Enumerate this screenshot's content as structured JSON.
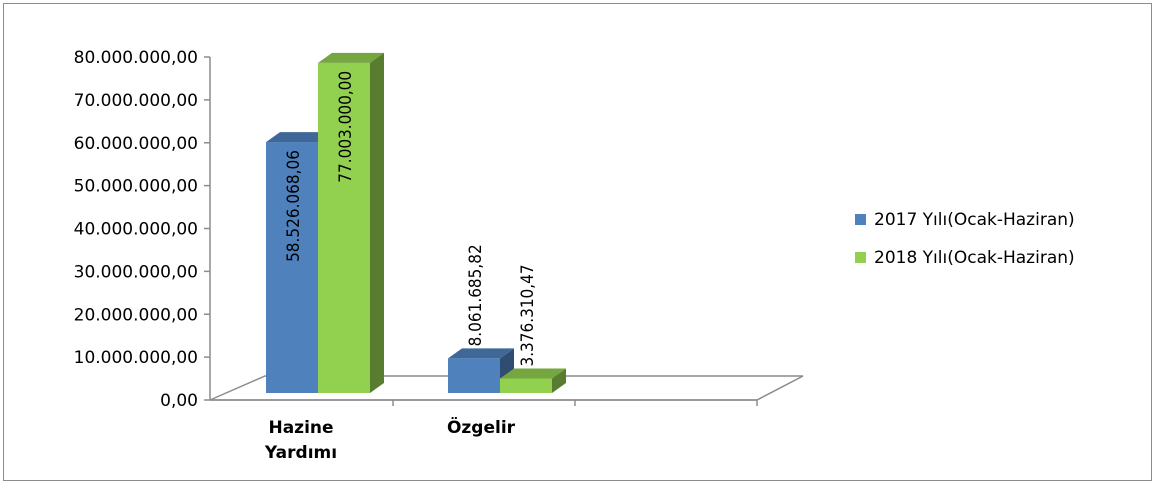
{
  "chart_data": {
    "type": "bar",
    "categories": [
      "Hazine Yardımı",
      "Özgelir"
    ],
    "category_lines": [
      [
        "Hazine",
        "Yardımı"
      ],
      [
        "Özgelir"
      ]
    ],
    "series": [
      {
        "name": "2017  Yılı(Ocak-Haziran)",
        "values": [
          58526068.06,
          8061685.82
        ],
        "labels": [
          "58.526.068,06",
          "8.061.685,82"
        ],
        "color": "#4f81bd"
      },
      {
        "name": "2018  Yılı(Ocak-Haziran)",
        "values": [
          77003000.0,
          3376310.47
        ],
        "labels": [
          "77.003.000,00",
          "3.376.310,47"
        ],
        "color": "#92d050"
      }
    ],
    "ylim": [
      0,
      80000000
    ],
    "yticks": [
      0,
      10000000,
      20000000,
      30000000,
      40000000,
      50000000,
      60000000,
      70000000,
      80000000
    ],
    "ytick_labels": [
      "0,00",
      "10.000.000,00",
      "20.000.000,00",
      "30.000.000,00",
      "40.000.000,00",
      "50.000.000,00",
      "60.000.000,00",
      "70.000.000,00",
      "80.000.000,00"
    ],
    "legend_position": "right",
    "grid": false,
    "style": "3d-clustered-column"
  }
}
